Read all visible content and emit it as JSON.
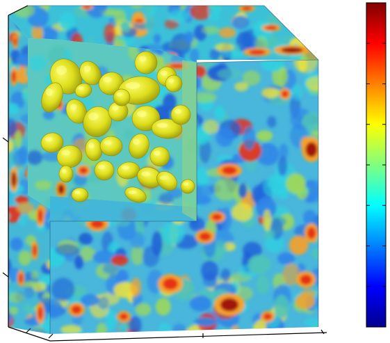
{
  "figure": {
    "kind": "3D volume rendering of a scalar field in a cube with a cut-out corner revealing isosurfaces",
    "colormap": {
      "name": "jet",
      "stops": [
        "#00008f",
        "#0000ff",
        "#0080ff",
        "#00ffff",
        "#80ff80",
        "#ffff00",
        "#ff8000",
        "#ff0000",
        "#800000"
      ],
      "orientation": "vertical",
      "tick_count": 8
    },
    "isosurface_color": "#e6e61a",
    "background_color": "#ffffff",
    "frame_color": "#000000"
  }
}
